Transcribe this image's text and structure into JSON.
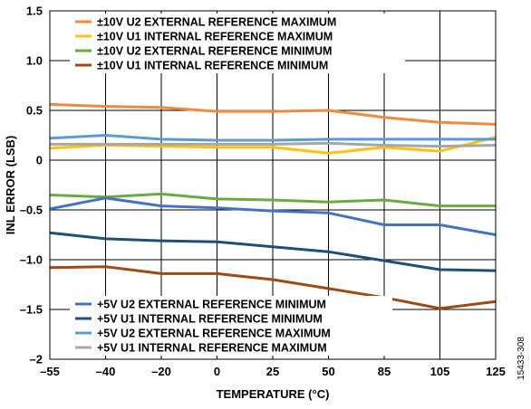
{
  "chart_data": {
    "type": "line",
    "title": "",
    "xlabel": "TEMPERATURE (°C)",
    "ylabel": "INL ERROR (LSB)",
    "categories": [
      "–55",
      "–40",
      "–20",
      "0",
      "25",
      "50",
      "85",
      "105",
      "125"
    ],
    "y_ticks": [
      "1.5",
      "1.0",
      "0.5",
      "0",
      "–0.5",
      "–1.0",
      "–1.5",
      "–2"
    ],
    "ylim": [
      -2,
      1.5
    ],
    "y_tick_values": [
      1.5,
      1.0,
      0.5,
      0,
      -0.5,
      -1.0,
      -1.5,
      -2
    ],
    "grid": true,
    "figure_id": "15433-308",
    "legends": [
      {
        "placement": "top-left",
        "entries": [
          {
            "name": "±10V U2 EXTERNAL REFERENCE MAXIMUM",
            "color": "#F08A3C"
          },
          {
            "name": "±10V U1 INTERNAL REFERENCE MAXIMUM",
            "color": "#FFC20E"
          },
          {
            "name": "±10V U2 EXTERNAL REFERENCE MINIMUM",
            "color": "#6AAA40"
          },
          {
            "name": "±10V U1 INTERNAL REFERENCE MINIMUM",
            "color": "#9E4A13"
          }
        ]
      },
      {
        "placement": "bottom-left",
        "entries": [
          {
            "name": "+5V U2 EXTERNAL REFERENCE MINIMUM",
            "color": "#4472C4"
          },
          {
            "name": "+5V U1 INTERNAL REFERENCE MINIMUM",
            "color": "#1F4E79"
          },
          {
            "name": "+5V U2 EXTERNAL REFERENCE MAXIMUM",
            "color": "#5B9BD5"
          },
          {
            "name": "+5V U1 INTERNAL REFERENCE MAXIMUM",
            "color": "#A6A6A6"
          }
        ]
      }
    ],
    "series": [
      {
        "name": "±10V U2 EXTERNAL REFERENCE MAXIMUM",
        "color": "#F08A3C",
        "values": [
          0.56,
          0.54,
          0.53,
          0.49,
          0.49,
          0.5,
          0.43,
          0.38,
          0.36
        ]
      },
      {
        "name": "±10V U1 INTERNAL REFERENCE MAXIMUM",
        "color": "#FFC20E",
        "values": [
          0.12,
          0.15,
          0.14,
          0.13,
          0.13,
          0.07,
          0.13,
          0.09,
          0.23
        ]
      },
      {
        "name": "±10V U2 EXTERNAL REFERENCE MINIMUM",
        "color": "#6AAA40",
        "values": [
          -0.35,
          -0.37,
          -0.34,
          -0.39,
          -0.4,
          -0.42,
          -0.4,
          -0.46,
          -0.46
        ]
      },
      {
        "name": "±10V U1 INTERNAL REFERENCE MINIMUM",
        "color": "#9E4A13",
        "values": [
          -1.08,
          -1.07,
          -1.14,
          -1.14,
          -1.2,
          -1.29,
          -1.38,
          -1.49,
          -1.42
        ]
      },
      {
        "name": "+5V U2 EXTERNAL REFERENCE MINIMUM",
        "color": "#4472C4",
        "values": [
          -0.49,
          -0.38,
          -0.46,
          -0.48,
          -0.51,
          -0.53,
          -0.65,
          -0.65,
          -0.75
        ]
      },
      {
        "name": "+5V U1 INTERNAL REFERENCE MINIMUM",
        "color": "#1F4E79",
        "values": [
          -0.73,
          -0.79,
          -0.81,
          -0.82,
          -0.87,
          -0.92,
          -1.01,
          -1.1,
          -1.11
        ]
      },
      {
        "name": "+5V U2 EXTERNAL REFERENCE MAXIMUM",
        "color": "#5B9BD5",
        "values": [
          0.22,
          0.25,
          0.21,
          0.2,
          0.2,
          0.21,
          0.21,
          0.21,
          0.21
        ]
      },
      {
        "name": "+5V U1 INTERNAL REFERENCE MAXIMUM",
        "color": "#A6A6A6",
        "values": [
          0.16,
          0.16,
          0.16,
          0.16,
          0.16,
          0.17,
          0.15,
          0.14,
          0.15
        ]
      }
    ]
  }
}
